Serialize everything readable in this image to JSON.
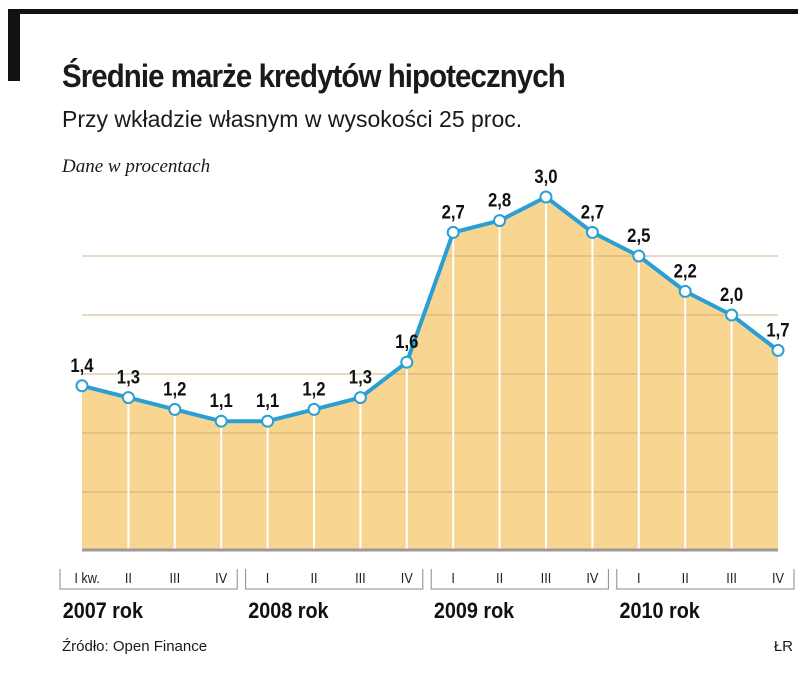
{
  "title": "Średnie marże kredytów hipotecznych",
  "subtitle": "Przy wkładzie własnym w wysokości 25 proc.",
  "unit_note": "Dane w procentach",
  "source": "Źródło: Open Finance",
  "author": "ŁR",
  "colors": {
    "line": "#2a9fd3",
    "fill": "#f9d592",
    "grid": "#c9a870",
    "axis": "#9a9a9a"
  },
  "chart_data": {
    "type": "area",
    "title": "Średnie marże kredytów hipotecznych",
    "subtitle": "Przy wkładzie własnym w wysokości 25 proc.",
    "ylabel": "Dane w procentach",
    "categories": [
      "I kw.",
      "II",
      "III",
      "IV",
      "I",
      "II",
      "III",
      "IV",
      "I",
      "II",
      "III",
      "IV",
      "I",
      "II",
      "III",
      "IV"
    ],
    "groups": [
      "2007 rok",
      "2008 rok",
      "2009 rok",
      "2010 rok"
    ],
    "values": [
      1.4,
      1.3,
      1.2,
      1.1,
      1.1,
      1.2,
      1.3,
      1.6,
      2.7,
      2.8,
      3.0,
      2.7,
      2.5,
      2.2,
      2.0,
      1.7
    ],
    "labels": [
      "1,4",
      "1,3",
      "1,2",
      "1,1",
      "1,1",
      "1,2",
      "1,3",
      "1,6",
      "2,7",
      "2,8",
      "3,0",
      "2,7",
      "2,5",
      "2,2",
      "2,0",
      "1,7"
    ],
    "ylim": [
      0,
      3
    ],
    "grid_step": 0.5,
    "grid": true
  }
}
